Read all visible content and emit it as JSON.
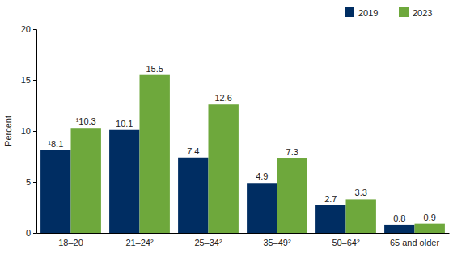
{
  "chart_data": {
    "type": "bar",
    "y_label": "Percent",
    "categories": [
      "18–20",
      "21–24²",
      "25–34²",
      "35–49²",
      "50–64²",
      "65 and older"
    ],
    "series": [
      {
        "name": "2019",
        "color": "#002d62",
        "values": [
          8.1,
          10.1,
          7.4,
          4.9,
          2.7,
          0.8
        ],
        "value_labels": [
          "¹8.1",
          "10.1",
          "7.4",
          "4.9",
          "2.7",
          "0.8"
        ]
      },
      {
        "name": "2023",
        "color": "#6ea83c",
        "values": [
          10.3,
          15.5,
          12.6,
          7.3,
          3.3,
          0.9
        ],
        "value_labels": [
          "¹10.3",
          "15.5",
          "12.6",
          "7.3",
          "3.3",
          "0.9"
        ]
      }
    ],
    "ylim": [
      0,
      20
    ],
    "yticks": [
      0,
      5,
      10,
      15,
      20
    ],
    "grid": false,
    "legend": "top-right",
    "data_labels": true
  }
}
